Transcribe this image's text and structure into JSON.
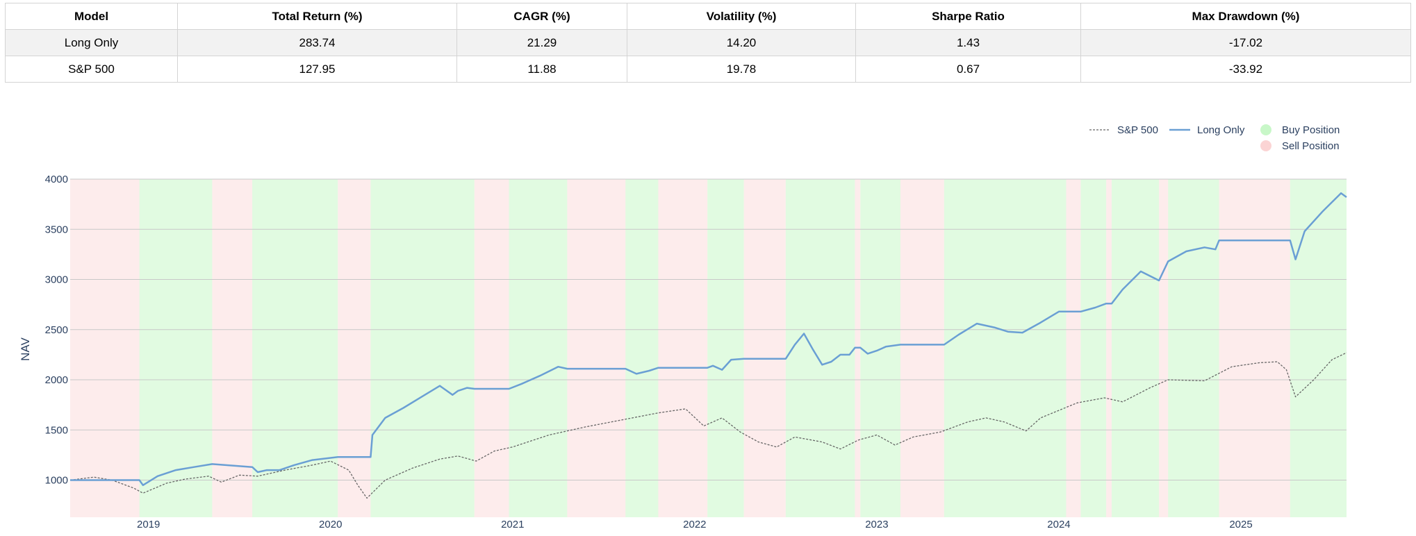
{
  "table": {
    "columns": [
      "Model",
      "Total Return (%)",
      "CAGR (%)",
      "Volatility (%)",
      "Sharpe Ratio",
      "Max Drawdown (%)"
    ],
    "rows": [
      [
        "Long Only",
        "283.74",
        "21.29",
        "14.20",
        "1.43",
        "-17.02"
      ],
      [
        "S&P 500",
        "127.95",
        "11.88",
        "19.78",
        "0.67",
        "-33.92"
      ]
    ]
  },
  "chart_data": {
    "type": "line",
    "ylabel": "NAV",
    "xlabel": "",
    "ylim": [
      630,
      4000
    ],
    "yticks": [
      1000,
      1500,
      2000,
      2500,
      3000,
      3500,
      4000
    ],
    "xlim": [
      2018.57,
      2025.58
    ],
    "xticks": [
      2019,
      2020,
      2021,
      2022,
      2023,
      2024,
      2025
    ],
    "xtick_labels": [
      "2019",
      "2020",
      "2021",
      "2022",
      "2023",
      "2024",
      "2025"
    ],
    "grid": true,
    "legend_position": "top-right",
    "legend": [
      {
        "label": "S&P 500",
        "style": "dotted-line",
        "color": "#666666"
      },
      {
        "label": "Long Only",
        "style": "solid-line",
        "color": "#6a9fd4"
      },
      {
        "label": "Buy Position",
        "style": "marker",
        "color": "#c8f7c8"
      },
      {
        "label": "Sell Position",
        "style": "marker",
        "color": "#fbd4d4"
      }
    ],
    "regions": [
      {
        "start": 2018.57,
        "end": 2018.95,
        "type": "sell"
      },
      {
        "start": 2018.95,
        "end": 2019.35,
        "type": "buy"
      },
      {
        "start": 2019.35,
        "end": 2019.57,
        "type": "sell"
      },
      {
        "start": 2019.57,
        "end": 2020.04,
        "type": "buy"
      },
      {
        "start": 2020.04,
        "end": 2020.22,
        "type": "sell"
      },
      {
        "start": 2020.22,
        "end": 2020.79,
        "type": "buy"
      },
      {
        "start": 2020.79,
        "end": 2020.98,
        "type": "sell"
      },
      {
        "start": 2020.98,
        "end": 2021.3,
        "type": "buy"
      },
      {
        "start": 2021.3,
        "end": 2021.62,
        "type": "sell"
      },
      {
        "start": 2021.62,
        "end": 2021.8,
        "type": "buy"
      },
      {
        "start": 2021.8,
        "end": 2022.07,
        "type": "sell"
      },
      {
        "start": 2022.07,
        "end": 2022.27,
        "type": "buy"
      },
      {
        "start": 2022.27,
        "end": 2022.5,
        "type": "sell"
      },
      {
        "start": 2022.5,
        "end": 2022.88,
        "type": "buy"
      },
      {
        "start": 2022.88,
        "end": 2022.91,
        "type": "sell"
      },
      {
        "start": 2022.91,
        "end": 2023.13,
        "type": "buy"
      },
      {
        "start": 2023.13,
        "end": 2023.37,
        "type": "sell"
      },
      {
        "start": 2023.37,
        "end": 2024.04,
        "type": "buy"
      },
      {
        "start": 2024.04,
        "end": 2024.12,
        "type": "sell"
      },
      {
        "start": 2024.12,
        "end": 2024.26,
        "type": "buy"
      },
      {
        "start": 2024.26,
        "end": 2024.29,
        "type": "sell"
      },
      {
        "start": 2024.29,
        "end": 2024.55,
        "type": "buy"
      },
      {
        "start": 2024.55,
        "end": 2024.6,
        "type": "sell"
      },
      {
        "start": 2024.6,
        "end": 2024.88,
        "type": "buy"
      },
      {
        "start": 2024.88,
        "end": 2025.27,
        "type": "sell"
      },
      {
        "start": 2025.27,
        "end": 2025.58,
        "type": "buy"
      }
    ],
    "series": [
      {
        "name": "Long Only",
        "color": "#6a9fd4",
        "style": "solid",
        "x": [
          2018.57,
          2018.95,
          2018.97,
          2019.05,
          2019.15,
          2019.25,
          2019.35,
          2019.57,
          2019.6,
          2019.65,
          2019.72,
          2019.8,
          2019.9,
          2020.04,
          2020.22,
          2020.23,
          2020.3,
          2020.4,
          2020.5,
          2020.6,
          2020.67,
          2020.7,
          2020.75,
          2020.79,
          2020.98,
          2021.05,
          2021.15,
          2021.25,
          2021.3,
          2021.62,
          2021.68,
          2021.75,
          2021.8,
          2022.07,
          2022.1,
          2022.15,
          2022.2,
          2022.27,
          2022.5,
          2022.55,
          2022.6,
          2022.65,
          2022.7,
          2022.75,
          2022.8,
          2022.85,
          2022.88,
          2022.91,
          2022.95,
          2023.0,
          2023.05,
          2023.13,
          2023.37,
          2023.45,
          2023.55,
          2023.65,
          2023.72,
          2023.8,
          2023.9,
          2024.0,
          2024.04,
          2024.12,
          2024.2,
          2024.26,
          2024.29,
          2024.35,
          2024.45,
          2024.55,
          2024.6,
          2024.7,
          2024.8,
          2024.86,
          2024.88,
          2025.27,
          2025.3,
          2025.35,
          2025.45,
          2025.55,
          2025.58
        ],
        "y": [
          1000,
          1000,
          950,
          1040,
          1100,
          1130,
          1160,
          1130,
          1080,
          1100,
          1100,
          1150,
          1200,
          1230,
          1230,
          1450,
          1620,
          1720,
          1830,
          1940,
          1850,
          1890,
          1920,
          1910,
          1910,
          1960,
          2040,
          2130,
          2110,
          2110,
          2060,
          2090,
          2120,
          2120,
          2140,
          2100,
          2200,
          2210,
          2210,
          2350,
          2460,
          2300,
          2150,
          2180,
          2250,
          2250,
          2320,
          2320,
          2260,
          2290,
          2330,
          2350,
          2350,
          2450,
          2560,
          2520,
          2480,
          2470,
          2570,
          2680,
          2680,
          2680,
          2720,
          2760,
          2760,
          2900,
          3080,
          2990,
          3180,
          3280,
          3320,
          3300,
          3390,
          3390,
          3200,
          3480,
          3680,
          3860,
          3820
        ]
      },
      {
        "name": "S&P 500",
        "color": "#666666",
        "style": "dotted",
        "x": [
          2018.57,
          2018.7,
          2018.8,
          2018.92,
          2018.97,
          2019.1,
          2019.2,
          2019.33,
          2019.4,
          2019.5,
          2019.6,
          2019.75,
          2019.9,
          2020.0,
          2020.1,
          2020.15,
          2020.2,
          2020.3,
          2020.45,
          2020.6,
          2020.7,
          2020.8,
          2020.9,
          2021.0,
          2021.2,
          2021.4,
          2021.6,
          2021.8,
          2021.95,
          2022.05,
          2022.15,
          2022.25,
          2022.35,
          2022.45,
          2022.55,
          2022.7,
          2022.8,
          2022.9,
          2023.0,
          2023.1,
          2023.2,
          2023.35,
          2023.5,
          2023.6,
          2023.7,
          2023.82,
          2023.9,
          2024.1,
          2024.25,
          2024.35,
          2024.5,
          2024.6,
          2024.8,
          2024.95,
          2025.1,
          2025.2,
          2025.25,
          2025.3,
          2025.4,
          2025.5,
          2025.58
        ],
        "y": [
          1000,
          1030,
          1000,
          920,
          870,
          970,
          1010,
          1040,
          980,
          1050,
          1040,
          1100,
          1150,
          1190,
          1100,
          950,
          820,
          1000,
          1120,
          1210,
          1240,
          1190,
          1290,
          1330,
          1450,
          1530,
          1600,
          1670,
          1710,
          1540,
          1620,
          1480,
          1380,
          1330,
          1430,
          1380,
          1310,
          1400,
          1450,
          1350,
          1430,
          1480,
          1580,
          1620,
          1580,
          1490,
          1620,
          1770,
          1820,
          1780,
          1920,
          2000,
          1990,
          2130,
          2170,
          2180,
          2100,
          1830,
          2000,
          2200,
          2270
        ]
      }
    ]
  }
}
